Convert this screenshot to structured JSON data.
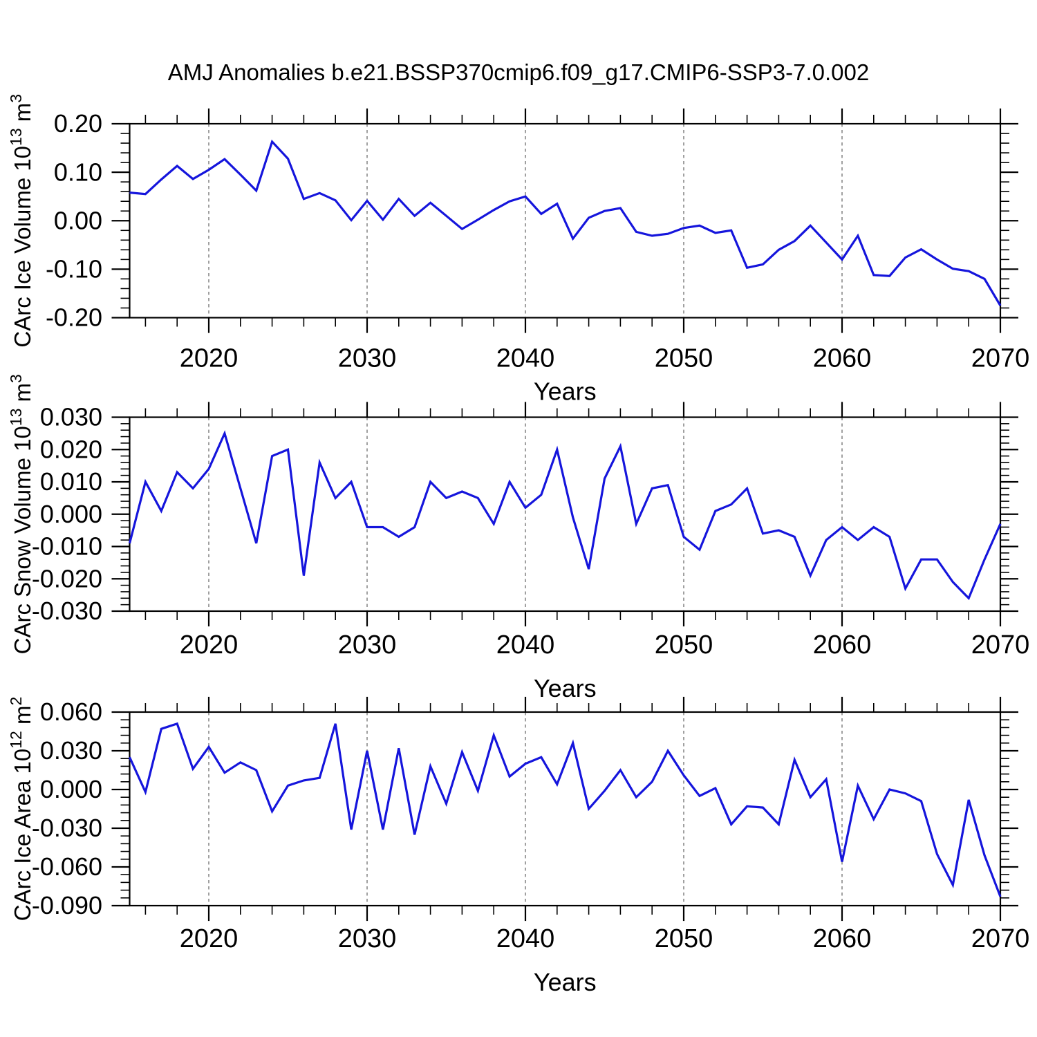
{
  "title": "AMJ Anomalies b.e21.BSSP370cmip6.f09_g17.CMIP6-SSP3-7.0.002",
  "line_color": "#1515dc",
  "grid_color": "#808080",
  "axis_color": "#000000",
  "xlabel": "Years",
  "chart_data": [
    {
      "type": "line",
      "ylabel": "CArc Ice Volume 10¹³ m³",
      "ylabel_parts": [
        {
          "t": "CArc Ice Volume 10"
        },
        {
          "t": "13",
          "sup": true
        },
        {
          "t": " m"
        },
        {
          "t": "3",
          "sup": true
        }
      ],
      "xlabel": "Years",
      "xlim": [
        2015,
        2070
      ],
      "ylim": [
        -0.2,
        0.2
      ],
      "xticks": [
        2020,
        2030,
        2040,
        2050,
        2060,
        2070
      ],
      "xtick_minor_step": 2,
      "grid_x": [
        2020,
        2030,
        2040,
        2050,
        2060
      ],
      "yticks": [
        0.2,
        0.1,
        0.0,
        -0.1,
        -0.2
      ],
      "ytick_labels": [
        "0.20",
        "0.10",
        "0.00",
        "-0.10",
        "-0.20"
      ],
      "ytick_minor_step": 0.02,
      "x": [
        2015,
        2016,
        2017,
        2018,
        2019,
        2020,
        2021,
        2022,
        2023,
        2024,
        2025,
        2026,
        2027,
        2028,
        2029,
        2030,
        2031,
        2032,
        2033,
        2034,
        2035,
        2036,
        2037,
        2038,
        2039,
        2040,
        2041,
        2042,
        2043,
        2044,
        2045,
        2046,
        2047,
        2048,
        2049,
        2050,
        2051,
        2052,
        2053,
        2054,
        2055,
        2056,
        2057,
        2058,
        2059,
        2060,
        2061,
        2062,
        2063,
        2064,
        2065,
        2066,
        2067,
        2068,
        2069,
        2070
      ],
      "values": [
        0.058,
        0.055,
        0.085,
        0.113,
        0.086,
        0.105,
        0.127,
        0.095,
        0.062,
        0.163,
        0.128,
        0.045,
        0.057,
        0.042,
        0.001,
        0.041,
        0.002,
        0.045,
        0.01,
        0.037,
        0.01,
        -0.017,
        0.002,
        0.022,
        0.04,
        0.05,
        0.014,
        0.035,
        -0.037,
        0.006,
        0.02,
        0.026,
        -0.023,
        -0.031,
        -0.027,
        -0.015,
        -0.01,
        -0.025,
        -0.02,
        -0.097,
        -0.09,
        -0.06,
        -0.042,
        -0.01,
        -0.045,
        -0.08,
        -0.031,
        -0.112,
        -0.114,
        -0.076,
        -0.059,
        -0.08,
        -0.099,
        -0.104,
        -0.12,
        -0.175
      ]
    },
    {
      "type": "line",
      "ylabel": "CArc Snow Volume 10¹³ m³",
      "ylabel_parts": [
        {
          "t": "CArc Snow Volume 10"
        },
        {
          "t": "13",
          "sup": true
        },
        {
          "t": " m"
        },
        {
          "t": "3",
          "sup": true
        }
      ],
      "xlabel": "Years",
      "xlim": [
        2015,
        2070
      ],
      "ylim": [
        -0.03,
        0.03
      ],
      "xticks": [
        2020,
        2030,
        2040,
        2050,
        2060,
        2070
      ],
      "xtick_minor_step": 2,
      "grid_x": [
        2020,
        2030,
        2040,
        2050,
        2060
      ],
      "yticks": [
        0.03,
        0.02,
        0.01,
        0.0,
        -0.01,
        -0.02,
        -0.03
      ],
      "ytick_labels": [
        "0.030",
        "0.020",
        "0.010",
        "0.000",
        "-0.010",
        "-0.020",
        "-0.030"
      ],
      "ytick_minor_step": 0.002,
      "x": [
        2015,
        2016,
        2017,
        2018,
        2019,
        2020,
        2021,
        2022,
        2023,
        2024,
        2025,
        2026,
        2027,
        2028,
        2029,
        2030,
        2031,
        2032,
        2033,
        2034,
        2035,
        2036,
        2037,
        2038,
        2039,
        2040,
        2041,
        2042,
        2043,
        2044,
        2045,
        2046,
        2047,
        2048,
        2049,
        2050,
        2051,
        2052,
        2053,
        2054,
        2055,
        2056,
        2057,
        2058,
        2059,
        2060,
        2061,
        2062,
        2063,
        2064,
        2065,
        2066,
        2067,
        2068,
        2069,
        2070
      ],
      "values": [
        -0.009,
        0.01,
        0.001,
        0.013,
        0.008,
        0.014,
        0.025,
        0.008,
        -0.009,
        0.018,
        0.02,
        -0.019,
        0.016,
        0.005,
        0.01,
        -0.004,
        -0.004,
        -0.007,
        -0.004,
        0.01,
        0.005,
        0.007,
        0.005,
        -0.003,
        0.01,
        0.002,
        0.006,
        0.02,
        -0.001,
        -0.017,
        0.011,
        0.021,
        -0.003,
        0.008,
        0.009,
        -0.007,
        -0.011,
        0.001,
        0.003,
        0.008,
        -0.006,
        -0.005,
        -0.007,
        -0.019,
        -0.008,
        -0.004,
        -0.008,
        -0.004,
        -0.007,
        -0.023,
        -0.014,
        -0.014,
        -0.021,
        -0.026,
        -0.014,
        -0.003
      ]
    },
    {
      "type": "line",
      "ylabel": "CArc Ice Area 10¹² m²",
      "ylabel_parts": [
        {
          "t": "CArc Ice Area 10"
        },
        {
          "t": "12",
          "sup": true
        },
        {
          "t": " m"
        },
        {
          "t": "2",
          "sup": true
        }
      ],
      "xlabel": "Years",
      "xlim": [
        2015,
        2070
      ],
      "ylim": [
        -0.09,
        0.06
      ],
      "xticks": [
        2020,
        2030,
        2040,
        2050,
        2060,
        2070
      ],
      "xtick_minor_step": 2,
      "grid_x": [
        2020,
        2030,
        2040,
        2050,
        2060
      ],
      "yticks": [
        0.06,
        0.03,
        0.0,
        -0.03,
        -0.06,
        -0.09
      ],
      "ytick_labels": [
        "0.060",
        "0.030",
        "0.000",
        "-0.030",
        "-0.060",
        "-0.090"
      ],
      "ytick_minor_step": 0.006,
      "x": [
        2015,
        2016,
        2017,
        2018,
        2019,
        2020,
        2021,
        2022,
        2023,
        2024,
        2025,
        2026,
        2027,
        2028,
        2029,
        2030,
        2031,
        2032,
        2033,
        2034,
        2035,
        2036,
        2037,
        2038,
        2039,
        2040,
        2041,
        2042,
        2043,
        2044,
        2045,
        2046,
        2047,
        2048,
        2049,
        2050,
        2051,
        2052,
        2053,
        2054,
        2055,
        2056,
        2057,
        2058,
        2059,
        2060,
        2061,
        2062,
        2063,
        2064,
        2065,
        2066,
        2067,
        2068,
        2069,
        2070
      ],
      "values": [
        0.025,
        -0.002,
        0.047,
        0.051,
        0.016,
        0.033,
        0.013,
        0.021,
        0.015,
        -0.017,
        0.003,
        0.007,
        0.009,
        0.051,
        -0.031,
        0.03,
        -0.031,
        0.032,
        -0.035,
        0.018,
        -0.011,
        0.029,
        -0.001,
        0.042,
        0.01,
        0.02,
        0.025,
        0.004,
        0.036,
        -0.015,
        -0.001,
        0.015,
        -0.006,
        0.006,
        0.03,
        0.011,
        -0.005,
        0.001,
        -0.027,
        -0.013,
        -0.014,
        -0.027,
        0.023,
        -0.006,
        0.008,
        -0.056,
        0.003,
        -0.023,
        0.0,
        -0.003,
        -0.009,
        -0.05,
        -0.074,
        -0.008,
        -0.051,
        -0.083
      ]
    }
  ]
}
